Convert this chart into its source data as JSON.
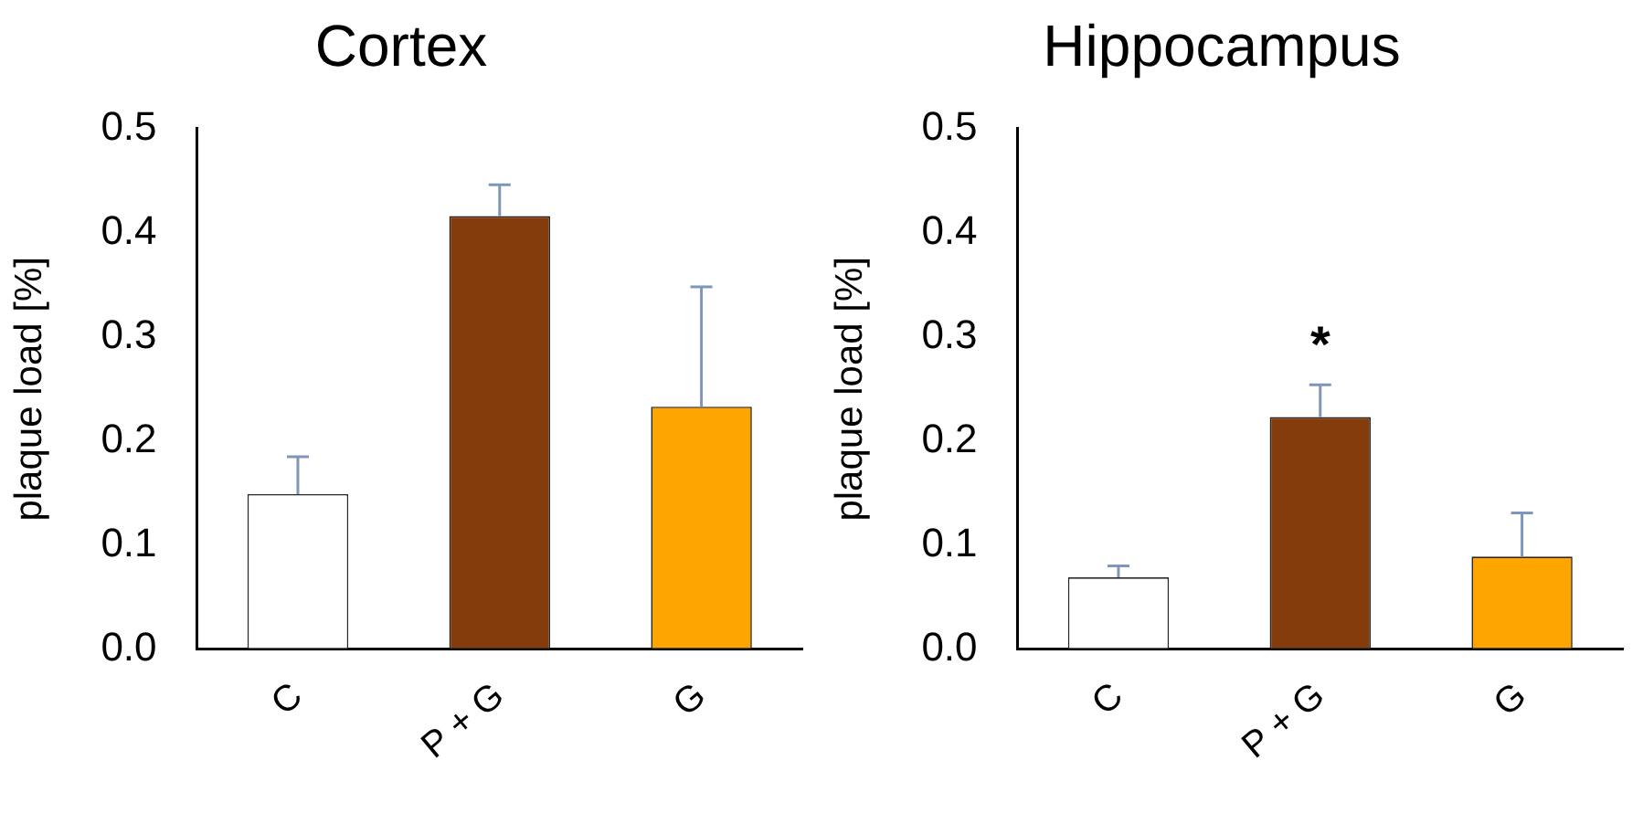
{
  "chart_data": [
    {
      "type": "bar",
      "title": "Cortex",
      "ylabel": "plaque load [%]",
      "categories": [
        "C",
        "P + G",
        "G"
      ],
      "values": [
        0.149,
        0.416,
        0.233
      ],
      "colors": [
        "#ffffff",
        "#843c0c",
        "#ffa500"
      ],
      "errors": [
        [
          0.149,
          0.185
        ],
        [
          0.416,
          0.446
        ],
        [
          0.233,
          0.348
        ]
      ],
      "ylim": [
        0,
        0.5
      ],
      "yticks": [
        {
          "value": 0,
          "label": "0.0"
        },
        0.1,
        0.2,
        0.3,
        0.4,
        0.5
      ],
      "grid": false,
      "legend": false
    },
    {
      "type": "bar",
      "title": "Hippocampus",
      "ylabel": "plaque load [%]",
      "categories": [
        "C",
        "P + G",
        "G"
      ],
      "values": [
        0.069,
        0.223,
        0.089
      ],
      "colors": [
        "#ffffff",
        "#843c0c",
        "#ffa500"
      ],
      "errors": [
        [
          0.069,
          0.08
        ],
        [
          0.223,
          0.254
        ],
        [
          0.089,
          0.131
        ]
      ],
      "ylim": [
        0,
        0.5
      ],
      "yticks": [
        {
          "value": 0,
          "label": "0.0"
        },
        0.1,
        0.2,
        0.3,
        0.4,
        0.5
      ],
      "grid": false,
      "legend": false,
      "annotations": [
        "*"
      ]
    }
  ]
}
